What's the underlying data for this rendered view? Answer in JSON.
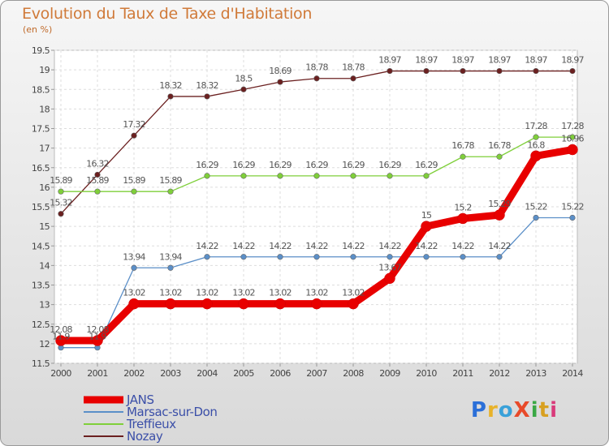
{
  "title": "Evolution du Taux de Taxe d'Habitation",
  "unit_label": "(en %)",
  "logo": {
    "text": "ProXiti",
    "colors": [
      "#2b6fd8",
      "#e8b22a",
      "#39a1d9",
      "#e84a2a",
      "#3aa845",
      "#d8a020",
      "#d93a7a"
    ]
  },
  "chart_data": {
    "type": "line",
    "x": [
      2000,
      2001,
      2002,
      2003,
      2004,
      2005,
      2006,
      2007,
      2008,
      2009,
      2010,
      2011,
      2012,
      2013,
      2014
    ],
    "ylim": [
      11.5,
      19.5
    ],
    "yticks": [
      "11.5",
      "12",
      "12.5",
      "13",
      "13.5",
      "14",
      "14.5",
      "15",
      "15.5",
      "16",
      "16.5",
      "17",
      "17.5",
      "18",
      "18.5",
      "19",
      "19.5"
    ],
    "grid": true,
    "legend_position": "bottom-left",
    "series": [
      {
        "name": "JANS",
        "color": "#e80000",
        "values": [
          12.08,
          12.08,
          13.02,
          13.02,
          13.02,
          13.02,
          13.02,
          13.02,
          13.02,
          13.67,
          15,
          15.2,
          15.29,
          16.8,
          16.96
        ],
        "labels": [
          "12.08",
          "12.08",
          "13.02",
          "13.02",
          "13.02",
          "13.02",
          "13.02",
          "13.02",
          "13.02",
          "13.67",
          "15",
          "15.2",
          "15.29",
          "16.8",
          "16.96"
        ]
      },
      {
        "name": "Marsac-sur-Don",
        "color": "#5b8fc8",
        "values": [
          11.9,
          11.9,
          13.94,
          13.94,
          14.22,
          14.22,
          14.22,
          14.22,
          14.22,
          14.22,
          14.22,
          14.22,
          14.22,
          15.22,
          15.22
        ],
        "labels": [
          "11.9",
          "11.9",
          "13.94",
          "13.94",
          "14.22",
          "14.22",
          "14.22",
          "14.22",
          "14.22",
          "14.22",
          "14.22",
          "14.22",
          "14.22",
          "15.22",
          "15.22"
        ]
      },
      {
        "name": "Treffieux",
        "color": "#7fcf3a",
        "values": [
          15.89,
          15.89,
          15.89,
          15.89,
          16.29,
          16.29,
          16.29,
          16.29,
          16.29,
          16.29,
          16.29,
          16.78,
          16.78,
          17.28,
          17.28
        ],
        "labels": [
          "15.89",
          "15.89",
          "15.89",
          "15.89",
          "16.29",
          "16.29",
          "16.29",
          "16.29",
          "16.29",
          "16.29",
          "16.29",
          "16.78",
          "16.78",
          "17.28",
          "17.28"
        ]
      },
      {
        "name": "Nozay",
        "color": "#6b2020",
        "values": [
          15.32,
          16.32,
          17.32,
          18.32,
          18.32,
          18.5,
          18.69,
          18.78,
          18.78,
          18.97,
          18.97,
          18.97,
          18.97,
          18.97,
          18.97
        ],
        "labels": [
          "15.32",
          "16.32",
          "17.32",
          "18.32",
          "18.32",
          "18.5",
          "18.69",
          "18.78",
          "18.78",
          "18.97",
          "18.97",
          "18.97",
          "18.97",
          "18.97",
          "18.97"
        ]
      }
    ]
  }
}
